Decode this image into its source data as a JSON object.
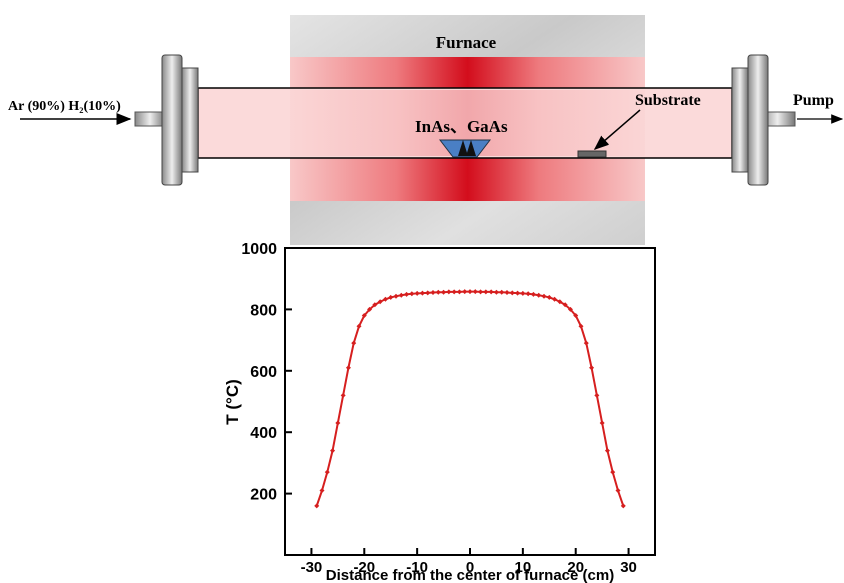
{
  "diagram": {
    "furnace_label": "Furnace",
    "gas_label": "Ar (90%) H₂(10%)",
    "pump_label": "Pump",
    "substrate_label": "Substrate",
    "source_label": "InAs、GaAs"
  },
  "chart_data": {
    "type": "line",
    "x": [
      -29,
      -28,
      -27,
      -26,
      -25,
      -24,
      -23,
      -22,
      -21,
      -20,
      -19,
      -18,
      -17,
      -16,
      -15,
      -14,
      -13,
      -12,
      -11,
      -10,
      -9,
      -8,
      -7,
      -6,
      -5,
      -4,
      -3,
      -2,
      -1,
      0,
      1,
      2,
      3,
      4,
      5,
      6,
      7,
      8,
      9,
      10,
      11,
      12,
      13,
      14,
      15,
      16,
      17,
      18,
      19,
      20,
      21,
      22,
      23,
      24,
      25,
      26,
      27,
      28,
      29
    ],
    "series": [
      {
        "color": "#d61f1f",
        "values": [
          160,
          210,
          270,
          340,
          430,
          520,
          610,
          690,
          745,
          780,
          800,
          815,
          825,
          833,
          839,
          843,
          846,
          849,
          851,
          852,
          853,
          854,
          855,
          856,
          856,
          857,
          857,
          857,
          858,
          858,
          858,
          857,
          857,
          857,
          856,
          856,
          855,
          854,
          853,
          852,
          851,
          849,
          846,
          843,
          839,
          833,
          825,
          815,
          800,
          780,
          745,
          690,
          610,
          520,
          430,
          340,
          270,
          210,
          160
        ]
      }
    ],
    "xlabel": "Distance from the center of furnace (cm)",
    "ylabel": "T (°C)",
    "xlim": [
      -35,
      35
    ],
    "ylim": [
      0,
      1000
    ],
    "xticks": [
      -30,
      -20,
      -10,
      0,
      10,
      20,
      30
    ],
    "yticks": [
      200,
      400,
      600,
      800,
      1000
    ]
  }
}
